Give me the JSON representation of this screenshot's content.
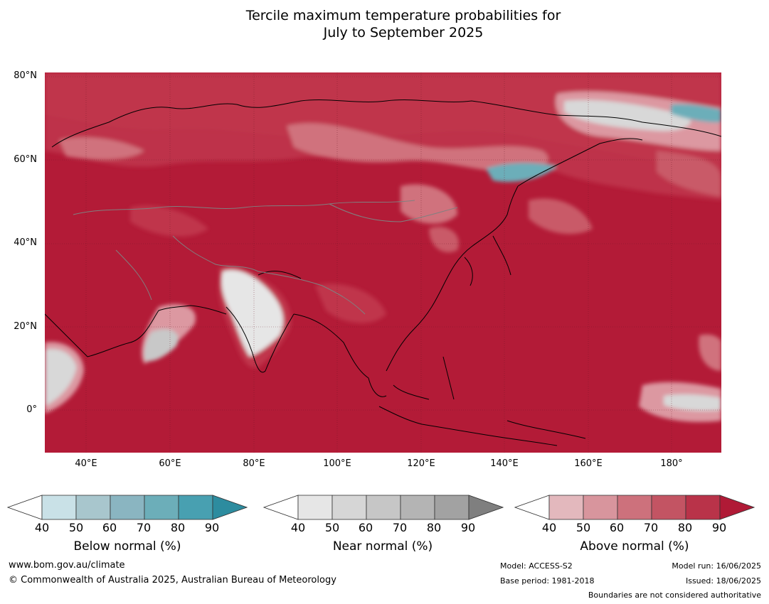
{
  "title": {
    "line1": "Tercile maximum temperature probabilities for",
    "line2": "July to September 2025"
  },
  "map": {
    "lon_range": [
      30,
      192
    ],
    "lat_range": [
      -10,
      81
    ],
    "latitude_labels": [
      "80°N",
      "60°N",
      "40°N",
      "20°N",
      "0°"
    ],
    "longitude_labels": [
      "40°E",
      "60°E",
      "80°E",
      "100°E",
      "120°E",
      "140°E",
      "160°E",
      "180°"
    ],
    "dominant_category": "Above normal 90%",
    "colors": {
      "above_90": "#b31b37",
      "above_80": "#c0364c",
      "above_70": "#c95a68",
      "above_60": "#d0727d",
      "above_50": "#dc98a1",
      "above_40": "#e6b8be",
      "near_50": "#d8d8d8",
      "near_60": "#c8c8c8",
      "below_60": "#a8c8d0",
      "below_80": "#3f9aaa",
      "coastline": "#000000",
      "borders": "#808080"
    }
  },
  "colorbars": [
    {
      "title": "Below normal (%)",
      "ticks": [
        "40",
        "50",
        "60",
        "70",
        "80",
        "90"
      ],
      "colors": [
        "#ffffff",
        "#c9e1e7",
        "#a8c6cd",
        "#8ab5c1",
        "#6caeb9",
        "#48a0b1",
        "#2d8c9f"
      ]
    },
    {
      "title": "Near normal (%)",
      "ticks": [
        "40",
        "50",
        "60",
        "70",
        "80",
        "90"
      ],
      "colors": [
        "#ffffff",
        "#e6e6e6",
        "#d6d6d6",
        "#c6c6c6",
        "#b4b4b4",
        "#a2a2a2",
        "#7f7f7f"
      ]
    },
    {
      "title": "Above normal (%)",
      "ticks": [
        "40",
        "50",
        "60",
        "70",
        "80",
        "90"
      ],
      "colors": [
        "#ffffff",
        "#e3b8bd",
        "#d8959d",
        "#cd717c",
        "#c35463",
        "#b93349",
        "#b01a36"
      ]
    }
  ],
  "footer": {
    "website": "www.bom.gov.au/climate",
    "copyright": "© Commonwealth of Australia 2025, Australian Bureau of Meteorology",
    "model": "Model: ACCESS-S2",
    "base_period": "Base period: 1981-2018",
    "model_run": "Model run: 16/06/2025",
    "issued": "Issued: 18/06/2025",
    "disclaimer": "Boundaries are not considered authoritative"
  }
}
